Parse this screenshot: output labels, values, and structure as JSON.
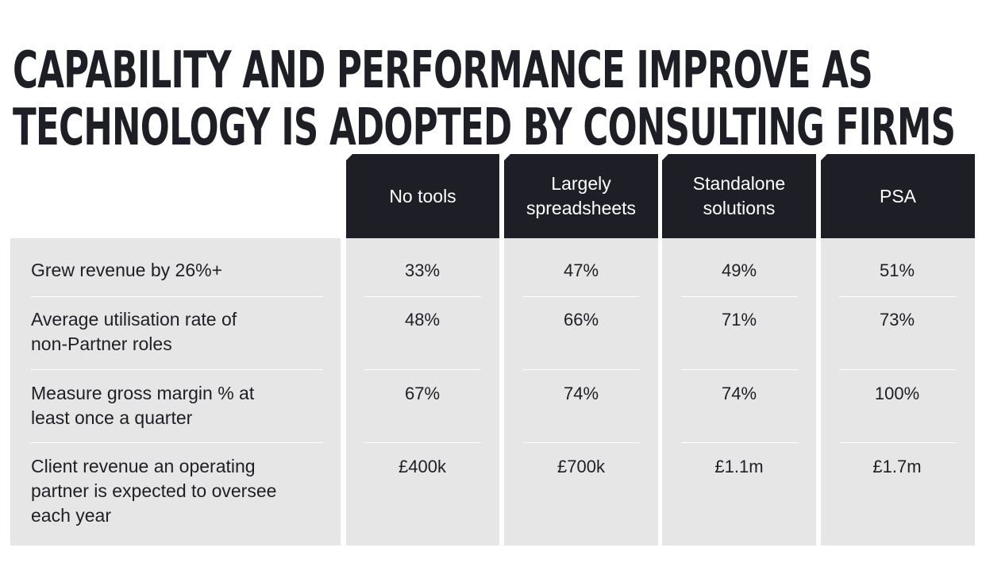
{
  "title": {
    "line1": "CAPABILITY AND PERFORMANCE IMPROVE AS",
    "line2": "TECHNOLOGY IS ADOPTED BY CONSULTING FIRMS"
  },
  "columns": [
    {
      "label": "No tools"
    },
    {
      "label": "Largely\nspreadsheets"
    },
    {
      "label": "Standalone\nsolutions"
    },
    {
      "label": "PSA"
    }
  ],
  "rows": [
    {
      "label": "Grew revenue by 26%+",
      "values": [
        "33%",
        "47%",
        "49%",
        "51%"
      ]
    },
    {
      "label": "Average utilisation rate of\nnon-Partner roles",
      "values": [
        "48%",
        "66%",
        "71%",
        "73%"
      ]
    },
    {
      "label": "Measure gross margin % at\nleast once a quarter",
      "values": [
        "67%",
        "74%",
        "74%",
        "100%"
      ]
    },
    {
      "label": "Client revenue an operating\npartner is expected to oversee\neach year",
      "values": [
        "£400k",
        "£700k",
        "£1.1m",
        "£1.7m"
      ]
    }
  ]
}
